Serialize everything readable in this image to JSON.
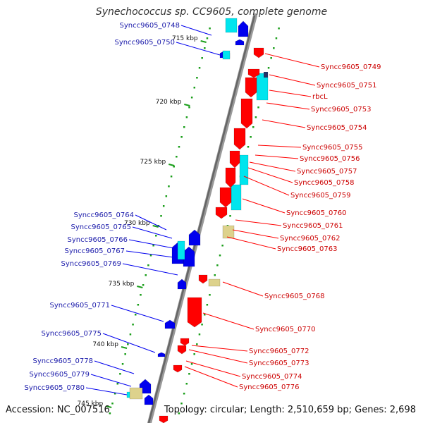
{
  "title": "Synechococcus sp. CC9605, complete genome",
  "footer": {
    "accession": "Accession: NC_007516",
    "summary": "Topology: circular; Length: 2,510,659 bp; Genes: 2,698"
  },
  "colors": {
    "forward_gene": "#ff0000",
    "reverse_gene": "#0000ee",
    "forward_label": "#cc0000",
    "reverse_label": "#1a1aaa",
    "cds_cyan": "#00e5ee",
    "rna_tan": "#ddd28c",
    "tick_green": "#1a9e1a",
    "backbone": "#666666"
  },
  "ticks": [
    {
      "label": "715 kbp"
    },
    {
      "label": "720 kbp"
    },
    {
      "label": "725 kbp"
    },
    {
      "label": "730 kbp"
    },
    {
      "label": "735 kbp"
    },
    {
      "label": "740 kbp"
    },
    {
      "label": "745 kbp"
    }
  ],
  "reverse_labels": [
    "Syncc9605_0748",
    "Syncc9605_0750",
    "Syncc9605_0764",
    "Syncc9605_0765",
    "Syncc9605_0766",
    "Syncc9605_0767",
    "Syncc9605_0769",
    "Syncc9605_0771",
    "Syncc9605_0775",
    "Syncc9605_0778",
    "Syncc9605_0779",
    "Syncc9605_0780"
  ],
  "forward_labels": [
    "Syncc9605_0749",
    "Syncc9605_0751",
    "rbcL",
    "Syncc9605_0753",
    "Syncc9605_0754",
    "Syncc9605_0755",
    "Syncc9605_0756",
    "Syncc9605_0757",
    "Syncc9605_0758",
    "Syncc9605_0759",
    "Syncc9605_0760",
    "Syncc9605_0761",
    "Syncc9605_0762",
    "Syncc9605_0763",
    "Syncc9605_0768",
    "Syncc9605_0770",
    "Syncc9605_0772",
    "Syncc9605_0773",
    "Syncc9605_0774",
    "Syncc9605_0776"
  ]
}
